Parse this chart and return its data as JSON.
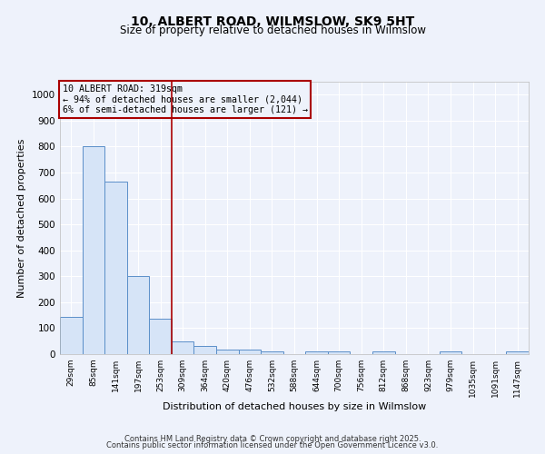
{
  "title1": "10, ALBERT ROAD, WILMSLOW, SK9 5HT",
  "title2": "Size of property relative to detached houses in Wilmslow",
  "xlabel": "Distribution of detached houses by size in Wilmslow",
  "ylabel": "Number of detached properties",
  "bar_color": "#d6e4f7",
  "bar_edge_color": "#5b8fc9",
  "categories": [
    "29sqm",
    "85sqm",
    "141sqm",
    "197sqm",
    "253sqm",
    "309sqm",
    "364sqm",
    "420sqm",
    "476sqm",
    "532sqm",
    "588sqm",
    "644sqm",
    "700sqm",
    "756sqm",
    "812sqm",
    "868sqm",
    "923sqm",
    "979sqm",
    "1035sqm",
    "1091sqm",
    "1147sqm"
  ],
  "values": [
    145,
    800,
    665,
    300,
    135,
    50,
    30,
    18,
    18,
    10,
    0,
    10,
    10,
    0,
    10,
    0,
    0,
    10,
    0,
    0,
    10
  ],
  "vline_x": 4.5,
  "vline_color": "#aa0000",
  "annotation_text": "10 ALBERT ROAD: 319sqm\n← 94% of detached houses are smaller (2,044)\n6% of semi-detached houses are larger (121) →",
  "annotation_box_color": "#aa0000",
  "ylim": [
    0,
    1050
  ],
  "yticks": [
    0,
    100,
    200,
    300,
    400,
    500,
    600,
    700,
    800,
    900,
    1000
  ],
  "bg_color": "#eef2fb",
  "grid_color": "#ffffff",
  "footer1": "Contains HM Land Registry data © Crown copyright and database right 2025.",
  "footer2": "Contains public sector information licensed under the Open Government Licence v3.0."
}
